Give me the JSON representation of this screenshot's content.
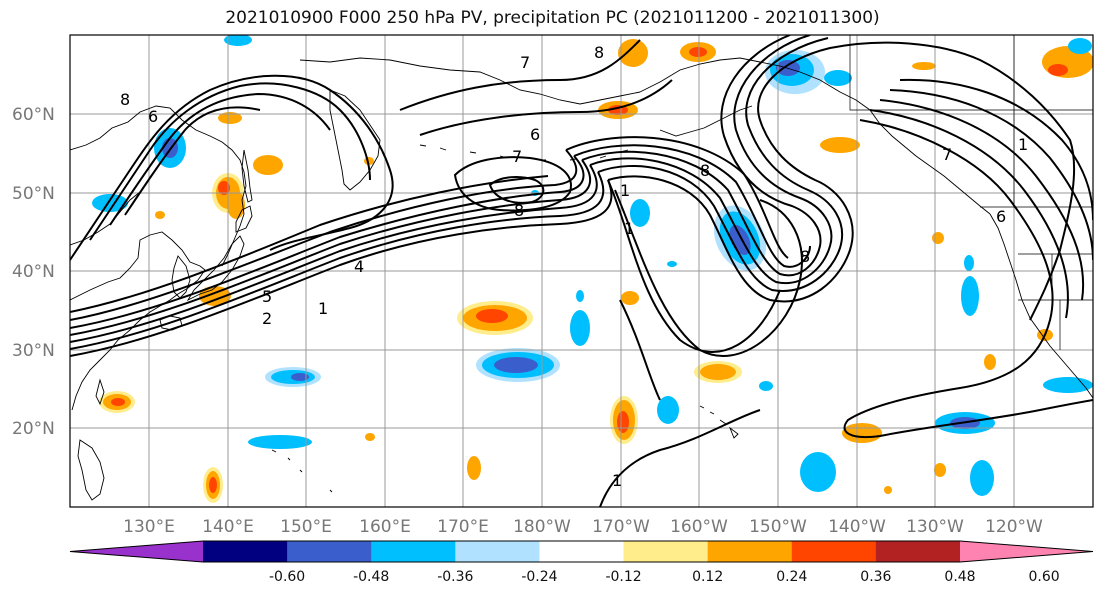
{
  "title": "2021010900 F000 250 hPa PV, precipitation PC (2021011200 - 2021011300)",
  "lat_labels": [
    "60°N",
    "50°N",
    "40°N",
    "30°N",
    "20°N"
  ],
  "lon_labels": [
    "130°E",
    "140°E",
    "150°E",
    "160°E",
    "170°E",
    "180°W",
    "170°W",
    "160°W",
    "150°W",
    "140°W",
    "130°W",
    "120°W"
  ],
  "colorbar": {
    "colors": [
      "#9932CC",
      "#000080",
      "#3A5FCD",
      "#00BFFF",
      "#B0E2FF",
      "#FFFFFF",
      "#FFEC8B",
      "#FFA500",
      "#FF4500",
      "#B22222",
      "#FF83B0"
    ],
    "labels": [
      "-0.60",
      "-0.48",
      "-0.36",
      "-0.24",
      "-0.12",
      "0.12",
      "0.24",
      "0.36",
      "0.48",
      "0.60"
    ]
  },
  "contour_labels": [
    "8",
    "6",
    "7",
    "8",
    "7",
    "8",
    "6",
    "8",
    "1",
    "1",
    "5",
    "4",
    "2",
    "1",
    "8",
    "7",
    "1",
    "6",
    "1"
  ],
  "colors": {
    "coast": "#000000",
    "grid": "#999999",
    "contour": "#000000"
  }
}
